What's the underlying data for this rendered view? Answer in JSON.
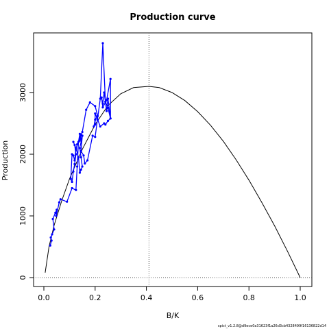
{
  "chart_data": {
    "type": "line",
    "title": "Production curve",
    "xlabel": "B/K",
    "ylabel": "Production",
    "footer": "spict_v1.2.8@d9ece0a31623f1a26d3cb4328499f16136822d14",
    "xlim": [
      0,
      1
    ],
    "ylim": [
      0,
      3800
    ],
    "x_ticks": [
      0.0,
      0.2,
      0.4,
      0.6,
      0.8,
      1.0
    ],
    "x_tick_labels": [
      "0.0",
      "0.2",
      "0.4",
      "0.6",
      "0.8",
      "1.0"
    ],
    "y_ticks": [
      0,
      1000,
      2000,
      3000
    ],
    "y_tick_labels": [
      "0",
      "1000",
      "2000",
      "3000"
    ],
    "grid": false,
    "reference_lines": {
      "vertical_x": 0.41,
      "horizontal_y": 0
    },
    "curve": {
      "x": [
        0.005,
        0.02,
        0.04,
        0.07,
        0.1,
        0.15,
        0.2,
        0.25,
        0.3,
        0.35,
        0.41,
        0.45,
        0.5,
        0.55,
        0.6,
        0.65,
        0.7,
        0.75,
        0.8,
        0.85,
        0.9,
        0.95,
        1.0
      ],
      "y": [
        80,
        500,
        850,
        1250,
        1600,
        2080,
        2480,
        2790,
        2980,
        3080,
        3100,
        3080,
        3000,
        2870,
        2690,
        2470,
        2210,
        1910,
        1580,
        1220,
        840,
        430,
        0
      ]
    },
    "series": [
      {
        "color": "#0000ff",
        "x": [
          0.025,
          0.03,
          0.027,
          0.032,
          0.04,
          0.035,
          0.045,
          0.05,
          0.048,
          0.06,
          0.065,
          0.09,
          0.11,
          0.125,
          0.13,
          0.135,
          0.14,
          0.15,
          0.145,
          0.155,
          0.16,
          0.17,
          0.19,
          0.2,
          0.22,
          0.23,
          0.24,
          0.245,
          0.25,
          0.26,
          0.25,
          0.24,
          0.235,
          0.23,
          0.225,
          0.23,
          0.245,
          0.26,
          0.26,
          0.25,
          0.24,
          0.235,
          0.22,
          0.21,
          0.2,
          0.2,
          0.195,
          0.2,
          0.21,
          0.2,
          0.18,
          0.165,
          0.15,
          0.145,
          0.14,
          0.145,
          0.13,
          0.125,
          0.12,
          0.115,
          0.11,
          0.105,
          0.11,
          0.115,
          0.12,
          0.125,
          0.12,
          0.115,
          0.125,
          0.135,
          0.14,
          0.145,
          0.15,
          0.145,
          0.14,
          0.15,
          0.145
        ],
        "y": [
          520,
          600,
          650,
          700,
          780,
          950,
          1050,
          1100,
          1000,
          1220,
          1270,
          1230,
          1450,
          1420,
          1800,
          2200,
          2330,
          2300,
          2050,
          1980,
          1850,
          1900,
          2300,
          2280,
          2900,
          3800,
          2850,
          2700,
          2900,
          2580,
          2750,
          2850,
          3000,
          2820,
          2920,
          2760,
          2880,
          3220,
          2580,
          2540,
          2480,
          2500,
          2450,
          2560,
          2660,
          2480,
          2450,
          2560,
          2620,
          2780,
          2840,
          2720,
          2360,
          2310,
          2220,
          2320,
          2160,
          2080,
          1900,
          1980,
          2000,
          1600,
          1550,
          1720,
          1840,
          2000,
          2150,
          2200,
          2100,
          1950,
          1700,
          1750,
          1800,
          1950,
          2100,
          2300,
          2250
        ]
      }
    ]
  }
}
